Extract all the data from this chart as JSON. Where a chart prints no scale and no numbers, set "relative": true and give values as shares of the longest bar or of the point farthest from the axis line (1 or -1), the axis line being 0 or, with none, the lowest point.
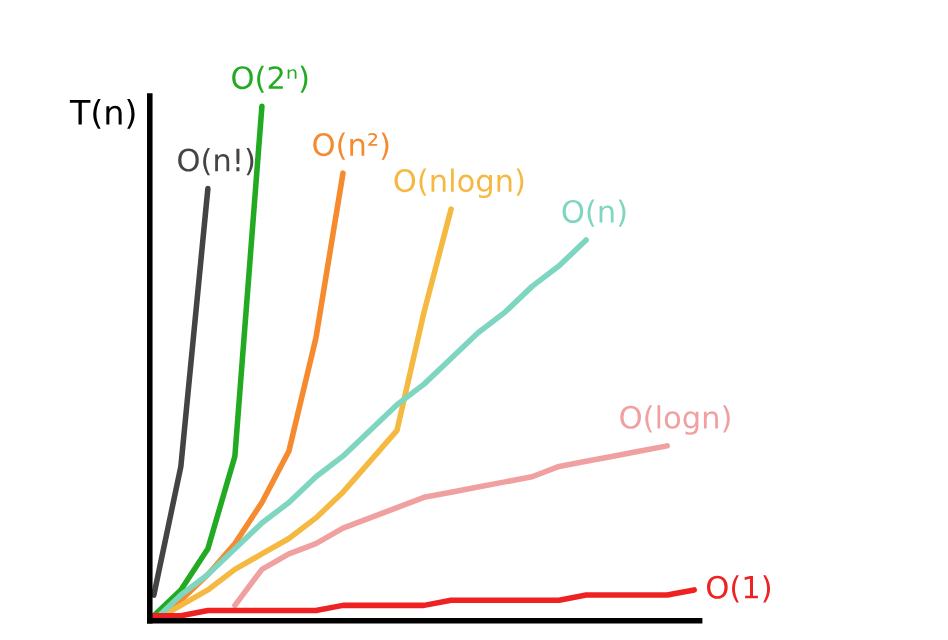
{
  "chart_data": {
    "type": "line",
    "relative": true,
    "ylabel": "T(n)",
    "legend": false,
    "marker": "none",
    "categories": [
      null,
      null,
      null,
      null,
      null,
      null,
      null,
      null,
      null,
      null,
      null,
      null,
      null,
      null,
      null,
      null,
      null,
      null,
      null,
      null,
      null
    ],
    "series": [
      {
        "name": "O(n!)",
        "color": "#444444",
        "values": [
          0.05,
          0.3,
          0.84,
          null,
          null,
          null,
          null,
          null,
          null,
          null,
          null,
          null,
          null,
          null,
          null,
          null,
          null,
          null,
          null,
          null,
          null
        ]
      },
      {
        "name": "O(2ⁿ)",
        "color": "#22aa22",
        "values": [
          0.01,
          0.06,
          0.14,
          0.32,
          1.0,
          null,
          null,
          null,
          null,
          null,
          null,
          null,
          null,
          null,
          null,
          null,
          null,
          null,
          null,
          null,
          null
        ]
      },
      {
        "name": "O(n²)",
        "color": "#f58a2e",
        "values": [
          0.0,
          0.04,
          0.09,
          0.15,
          0.23,
          0.33,
          0.55,
          0.87,
          null,
          null,
          null,
          null,
          null,
          null,
          null,
          null,
          null,
          null,
          null,
          null,
          null
        ]
      },
      {
        "name": "O(nlogn)",
        "color": "#f5b942",
        "values": [
          0.0,
          0.03,
          0.06,
          0.1,
          0.13,
          0.16,
          0.2,
          0.25,
          0.31,
          0.37,
          0.6,
          0.8,
          null,
          null,
          null,
          null,
          null,
          null,
          null,
          null,
          null
        ]
      },
      {
        "name": "O(n)",
        "color": "#7fd6c0",
        "values": [
          0.0,
          0.05,
          0.09,
          0.14,
          0.19,
          0.23,
          0.28,
          0.32,
          0.37,
          0.42,
          0.46,
          0.51,
          0.56,
          0.6,
          0.65,
          0.69,
          0.74,
          null,
          null,
          null,
          null
        ]
      },
      {
        "name": "O(logn)",
        "color": "#f0a0a0",
        "values": [
          null,
          null,
          null,
          0.03,
          0.1,
          0.13,
          0.15,
          0.18,
          0.2,
          0.22,
          0.24,
          0.25,
          0.26,
          0.27,
          0.28,
          0.3,
          0.31,
          0.32,
          0.33,
          0.34,
          null
        ]
      },
      {
        "name": "O(1)",
        "color": "#ee2222",
        "values": [
          0.01,
          0.01,
          0.02,
          0.02,
          0.02,
          0.02,
          0.02,
          0.03,
          0.03,
          0.03,
          0.03,
          0.04,
          0.04,
          0.04,
          0.04,
          0.04,
          0.05,
          0.05,
          0.05,
          0.05,
          0.06
        ]
      }
    ]
  }
}
